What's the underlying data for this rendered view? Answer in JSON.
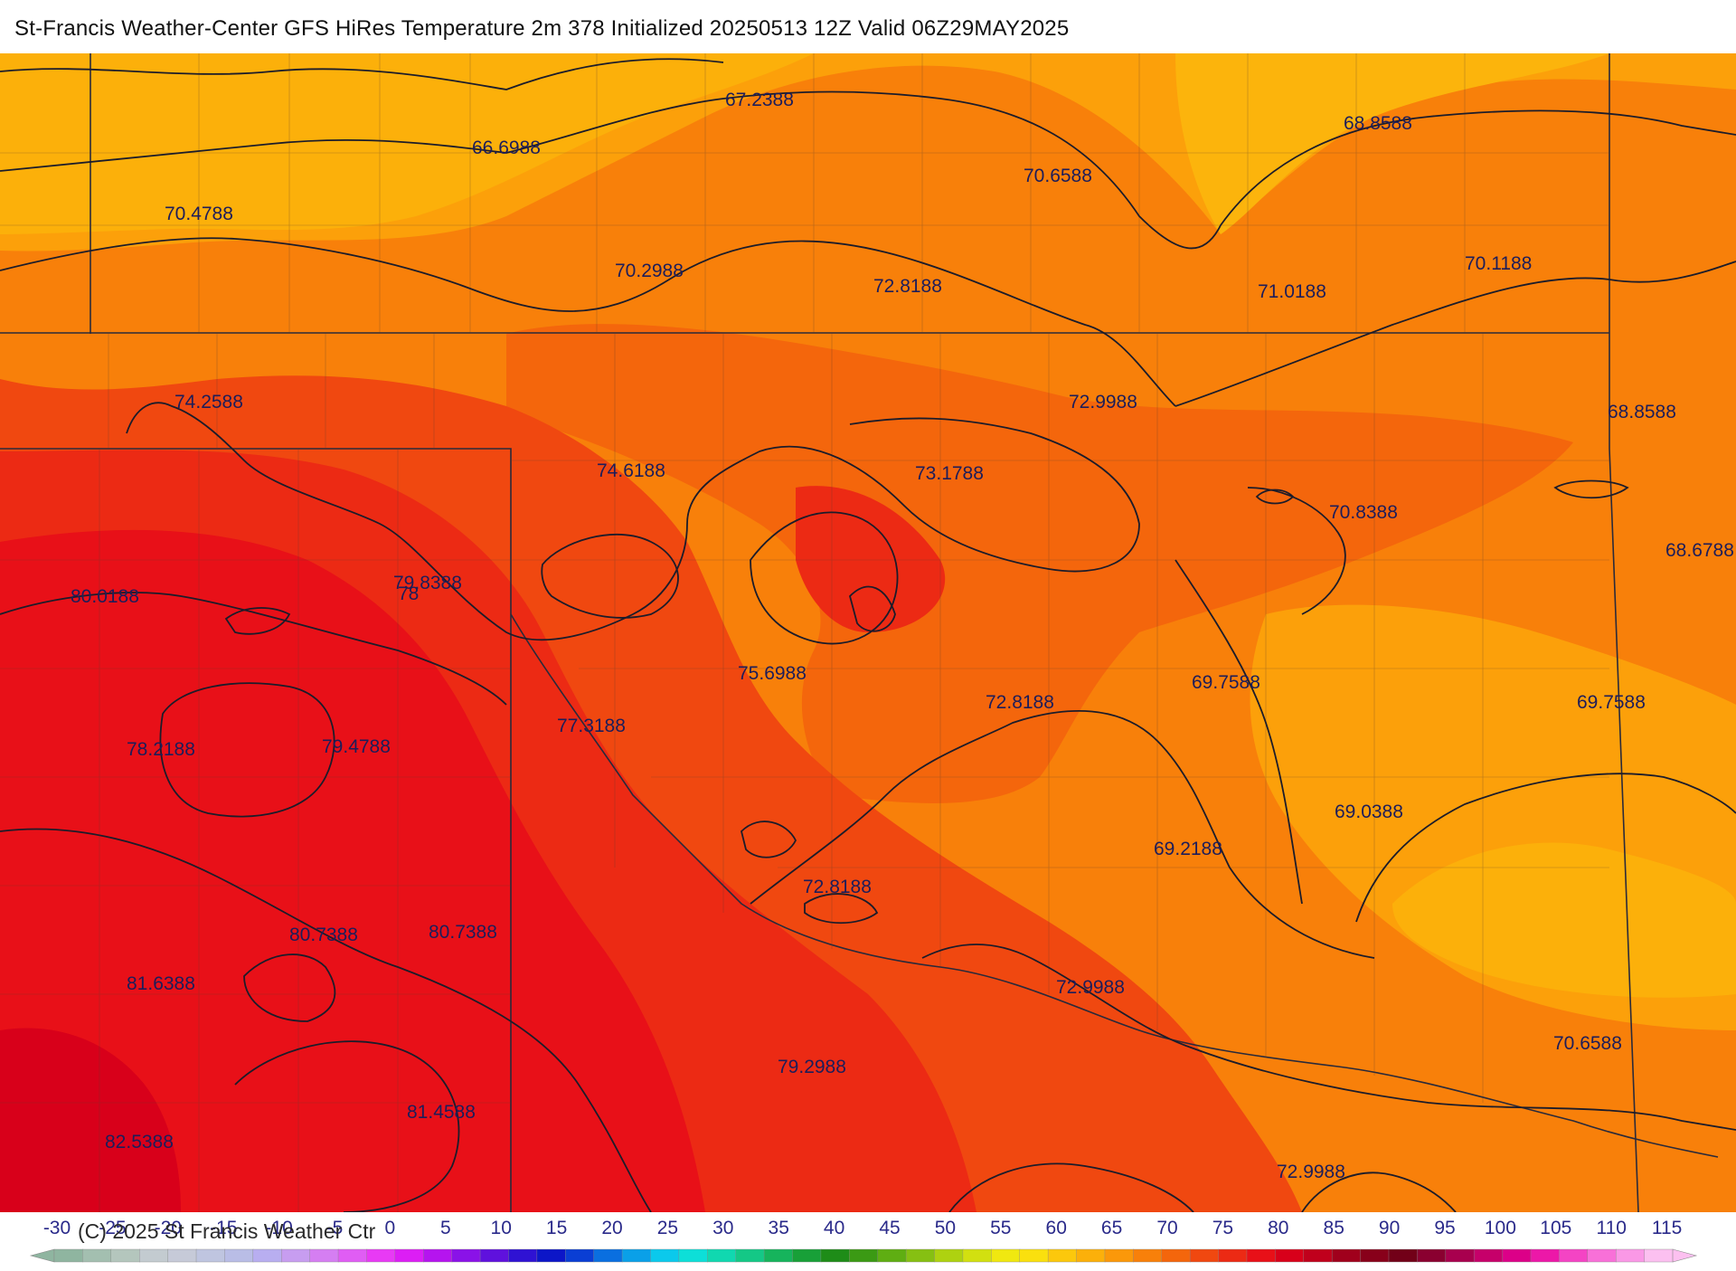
{
  "title": "St-Francis Weather-Center GFS HiRes Temperature 2m  378 Initialized 20250513 12Z Valid 06Z29MAY2025",
  "copyright": "(C) 2025 St Francis Weather Ctr",
  "map": {
    "field": "Temperature 2m",
    "contour_labels": [
      "67.2388",
      "66.6988",
      "68.8588",
      "70.6588",
      "70.4788",
      "70.2988",
      "72.8188",
      "71.0188",
      "70.1188",
      "74.2588",
      "72.9988",
      "68.8588",
      "74.6188",
      "73.1788",
      "70.8388",
      "68.6788",
      "80.0188",
      "79.8388",
      "78",
      "75.6988",
      "72.8188",
      "69.7588",
      "69.7588",
      "78.2188",
      "79.4788",
      "77.3188",
      "69.0388",
      "69.2188",
      "72.8188",
      "80.7388",
      "80.7388",
      "81.6388",
      "72.9988",
      "70.6588",
      "79.2988",
      "81.4588",
      "82.5388",
      "72.9988"
    ]
  },
  "colorbar": {
    "ticks": [
      "-30",
      "-25",
      "-20",
      "-15",
      "-10",
      "-5",
      "0",
      "5",
      "10",
      "15",
      "20",
      "25",
      "30",
      "35",
      "40",
      "45",
      "50",
      "55",
      "60",
      "65",
      "70",
      "75",
      "80",
      "85",
      "90",
      "95",
      "100",
      "105",
      "110",
      "115"
    ],
    "colors": [
      "#8fb5a0",
      "#a3bfb0",
      "#b4c6bd",
      "#c3cbd0",
      "#c6cad8",
      "#bfc5e0",
      "#b9bde6",
      "#b8aef0",
      "#c79df0",
      "#d57ef2",
      "#e05df4",
      "#e83af5",
      "#dc1ef5",
      "#b514ef",
      "#8a12e8",
      "#5f11dd",
      "#2f12d3",
      "#0c16c8",
      "#0a3ed4",
      "#0a6fe0",
      "#0aa0e8",
      "#0bc9ec",
      "#0ddfd8",
      "#10d8b0",
      "#14c886",
      "#16b45c",
      "#18a038",
      "#1e8c18",
      "#3b9a14",
      "#5fae12",
      "#86c012",
      "#aed210",
      "#d2e010",
      "#f0e810",
      "#fae00e",
      "#fcc80c",
      "#fcb00a",
      "#fb980a",
      "#f8800a",
      "#f4660c",
      "#f04810",
      "#ec2a14",
      "#e81018",
      "#d8001a",
      "#c0001c",
      "#a0001c",
      "#88001a",
      "#720018",
      "#8a0030",
      "#a8004e",
      "#c6006a",
      "#dc0088",
      "#ec18a8",
      "#f444c4",
      "#f870d8",
      "#fa98e6",
      "#fcc0f0"
    ]
  }
}
